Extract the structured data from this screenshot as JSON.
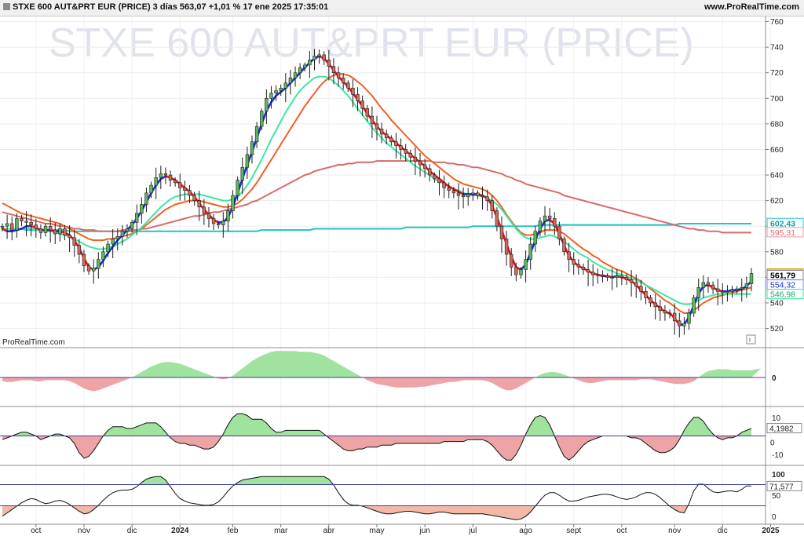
{
  "header": {
    "title": "STXE 600 AUT&PRT EUR (PRICE) 3 días 563,07 +1,01 % 17 ene 2025 17:35:01",
    "site": "www.ProRealTime.com"
  },
  "watermark": "STXE 600 AUT&PRT EUR (PRICE)",
  "brand_label": "ProRealTime.com",
  "info_icon": "info-icon",
  "colors": {
    "up": "#5db85d",
    "down": "#d06a5e",
    "ma_fast": "#e0141e",
    "ma_fast_up": "#1a2fd8",
    "ma_mid": "#f06025",
    "ma_green": "#3ae8a0",
    "ma_slow": "#d86b6b",
    "ma_flat": "#20c4c8",
    "osc_pos": "#9fe39f",
    "osc_neg": "#eea4a4"
  },
  "price_tags": [
    {
      "label": "602,43",
      "value": 602.43,
      "bg": "#ffffff",
      "fg": "#129ca0",
      "border": "#20c4c8",
      "bold": true
    },
    {
      "label": "595,31",
      "value": 595.31,
      "bg": "#ffffff",
      "fg": "#d86b6b",
      "border": "#e8a0a0",
      "bold": false
    },
    {
      "label": "563,07",
      "value": 563.07,
      "bg": "#f2c232",
      "fg": "#000000",
      "border": "#d8a818",
      "bold": true
    },
    {
      "label": "561,79",
      "value": 561.79,
      "bg": "#ffffff",
      "fg": "#000000",
      "border": "#888888",
      "bold": true
    },
    {
      "label": "554,32",
      "value": 554.32,
      "bg": "#ffffff",
      "fg": "#1a2fd8",
      "border": "#7f8ff0",
      "bold": false
    },
    {
      "label": "546,98",
      "value": 546.98,
      "bg": "#ffffff",
      "fg": "#20a070",
      "border": "#3ae8a0",
      "bold": false
    }
  ],
  "panel2_tag": "0",
  "panel3_tag": "4,1982",
  "panel4_tag": "71,577",
  "chart_data": {
    "type": "candlestick",
    "title": "STXE 600 AUT&PRT EUR (PRICE)",
    "timeframe": "3 días",
    "last": 563.07,
    "change_pct": "+1,01 %",
    "ylim": [
      505,
      764
    ],
    "y_ticks": [
      520,
      540,
      560,
      580,
      600,
      620,
      640,
      660,
      680,
      700,
      720,
      740,
      760
    ],
    "x_ticks": [
      {
        "label": "oct",
        "i": 7,
        "bold": false
      },
      {
        "label": "nov",
        "i": 17,
        "bold": false
      },
      {
        "label": "dic",
        "i": 27,
        "bold": false
      },
      {
        "label": "2024",
        "i": 37,
        "bold": true
      },
      {
        "label": "feb",
        "i": 48,
        "bold": false
      },
      {
        "label": "mar",
        "i": 58,
        "bold": false
      },
      {
        "label": "abr",
        "i": 68,
        "bold": false
      },
      {
        "label": "may",
        "i": 78,
        "bold": false
      },
      {
        "label": "jun",
        "i": 88,
        "bold": false
      },
      {
        "label": "jul",
        "i": 98,
        "bold": false
      },
      {
        "label": "ago",
        "i": 109,
        "bold": false
      },
      {
        "label": "sept",
        "i": 119,
        "bold": false
      },
      {
        "label": "oct",
        "i": 129,
        "bold": false
      },
      {
        "label": "nov",
        "i": 140,
        "bold": false
      },
      {
        "label": "dic",
        "i": 150,
        "bold": false
      },
      {
        "label": "2025",
        "i": 160,
        "bold": true
      }
    ],
    "close": [
      600,
      602,
      597,
      606,
      604,
      603,
      601,
      598,
      595,
      600,
      597,
      594,
      598,
      593,
      591,
      585,
      578,
      569,
      565,
      567,
      574,
      580,
      586,
      590,
      592,
      596,
      598,
      603,
      610,
      617,
      626,
      632,
      638,
      641,
      640,
      636,
      634,
      630,
      628,
      624,
      620,
      615,
      610,
      606,
      602,
      601,
      604,
      612,
      624,
      636,
      646,
      656,
      666,
      678,
      690,
      700,
      704,
      706,
      708,
      712,
      716,
      720,
      724,
      726,
      730,
      733,
      734,
      730,
      725,
      720,
      716,
      712,
      708,
      703,
      698,
      692,
      686,
      680,
      676,
      672,
      669,
      666,
      663,
      660,
      657,
      654,
      651,
      648,
      645,
      640,
      637,
      634,
      630,
      628,
      626,
      624,
      623,
      625,
      626,
      624,
      623,
      620,
      612,
      600,
      590,
      578,
      568,
      562,
      566,
      574,
      586,
      596,
      604,
      608,
      606,
      600,
      590,
      580,
      574,
      570,
      568,
      566,
      564,
      562,
      562,
      561,
      560,
      560,
      561,
      560,
      558,
      556,
      553,
      549,
      544,
      540,
      537,
      534,
      532,
      532,
      526,
      522,
      524,
      532,
      544,
      552,
      556,
      554,
      551,
      549,
      548,
      549,
      550,
      551,
      552,
      555,
      563
    ],
    "ma_fast": [
      598,
      596,
      596,
      597,
      598,
      600,
      600,
      599,
      597,
      597,
      597,
      596,
      596,
      595,
      593,
      589,
      583,
      575,
      568,
      566,
      568,
      573,
      579,
      584,
      589,
      593,
      597,
      601,
      606,
      612,
      619,
      626,
      632,
      637,
      639,
      638,
      636,
      633,
      630,
      627,
      623,
      618,
      613,
      609,
      605,
      603,
      603,
      607,
      615,
      626,
      637,
      648,
      658,
      669,
      680,
      690,
      697,
      702,
      705,
      708,
      712,
      716,
      720,
      724,
      728,
      731,
      733,
      731,
      727,
      722,
      717,
      713,
      709,
      704,
      699,
      694,
      688,
      683,
      678,
      674,
      671,
      668,
      665,
      662,
      659,
      656,
      653,
      650,
      647,
      643,
      640,
      637,
      634,
      631,
      629,
      627,
      625,
      625,
      625,
      625,
      624,
      622,
      616,
      607,
      597,
      586,
      576,
      568,
      566,
      570,
      579,
      589,
      598,
      604,
      605,
      602,
      594,
      585,
      577,
      572,
      569,
      567,
      565,
      563,
      562,
      561,
      561,
      560,
      561,
      560,
      559,
      557,
      554,
      550,
      546,
      542,
      539,
      536,
      533,
      532,
      528,
      523,
      523,
      529,
      538,
      547,
      553,
      554,
      552,
      550,
      549,
      549,
      550,
      550,
      551,
      553,
      557
    ],
    "ma_mid": [
      618,
      616,
      614,
      612,
      610,
      609,
      608,
      607,
      606,
      605,
      604,
      603,
      602,
      600,
      598,
      596,
      594,
      592,
      590,
      589,
      589,
      589,
      590,
      590,
      591,
      592,
      593,
      594,
      596,
      598,
      601,
      604,
      607,
      610,
      613,
      615,
      617,
      618,
      619,
      620,
      620,
      620,
      619,
      618,
      617,
      616,
      615,
      615,
      616,
      618,
      621,
      625,
      629,
      634,
      640,
      646,
      652,
      658,
      664,
      670,
      676,
      682,
      688,
      694,
      699,
      704,
      709,
      713,
      716,
      718,
      719,
      719,
      718,
      716,
      713,
      710,
      706,
      702,
      697,
      692,
      688,
      683,
      679,
      675,
      671,
      667,
      663,
      659,
      655,
      652,
      649,
      646,
      643,
      640,
      637,
      635,
      633,
      632,
      631,
      630,
      629,
      627,
      624,
      620,
      615,
      609,
      604,
      599,
      595,
      593,
      593,
      594,
      595,
      597,
      597,
      597,
      596,
      594,
      591,
      588,
      585,
      582,
      580,
      577,
      575,
      572,
      570,
      568,
      566,
      565,
      563,
      561,
      559,
      557,
      554,
      551,
      548,
      545,
      542,
      540,
      537,
      534,
      532,
      532,
      534,
      537,
      540,
      542,
      544,
      545,
      546,
      547,
      548,
      549,
      550,
      551,
      552
    ],
    "ma_green": [
      598,
      598,
      598,
      598,
      598,
      598,
      598,
      597,
      597,
      596,
      596,
      595,
      594,
      593,
      592,
      590,
      588,
      586,
      584,
      583,
      582,
      582,
      583,
      584,
      586,
      588,
      590,
      593,
      596,
      599,
      603,
      607,
      611,
      615,
      618,
      621,
      623,
      624,
      625,
      625,
      625,
      625,
      624,
      623,
      622,
      621,
      620,
      620,
      621,
      623,
      627,
      632,
      638,
      645,
      652,
      660,
      668,
      675,
      682,
      689,
      695,
      701,
      706,
      710,
      713,
      716,
      717,
      717,
      716,
      713,
      710,
      706,
      702,
      697,
      692,
      687,
      682,
      677,
      673,
      669,
      665,
      662,
      659,
      656,
      653,
      650,
      647,
      645,
      642,
      640,
      637,
      635,
      633,
      631,
      629,
      628,
      626,
      625,
      624,
      624,
      623,
      622,
      620,
      617,
      613,
      608,
      603,
      598,
      594,
      591,
      590,
      590,
      591,
      592,
      593,
      592,
      590,
      588,
      585,
      582,
      579,
      577,
      575,
      572,
      570,
      568,
      566,
      565,
      563,
      562,
      561,
      559,
      558,
      556,
      554,
      552,
      550,
      548,
      546,
      544,
      542,
      540,
      539,
      539,
      540,
      542,
      544,
      545,
      546,
      547,
      547,
      547,
      547,
      547,
      547,
      547,
      547
    ],
    "ma_slow": [
      611,
      610,
      609,
      608,
      607,
      606,
      605,
      604,
      603,
      602,
      602,
      601,
      600,
      600,
      599,
      598,
      598,
      597,
      597,
      597,
      596,
      596,
      596,
      596,
      596,
      597,
      597,
      597,
      597,
      598,
      598,
      599,
      600,
      601,
      602,
      603,
      604,
      605,
      606,
      607,
      608,
      608,
      609,
      610,
      611,
      611,
      612,
      613,
      614,
      615,
      616,
      617,
      619,
      620,
      622,
      624,
      626,
      628,
      630,
      632,
      634,
      636,
      638,
      640,
      641,
      643,
      644,
      645,
      646,
      647,
      648,
      648,
      649,
      649,
      650,
      650,
      650,
      650,
      651,
      651,
      651,
      651,
      651,
      651,
      651,
      651,
      651,
      651,
      651,
      651,
      650,
      650,
      650,
      649,
      649,
      648,
      648,
      647,
      646,
      646,
      645,
      644,
      643,
      642,
      641,
      639,
      638,
      636,
      635,
      633,
      632,
      631,
      630,
      629,
      628,
      627,
      626,
      624,
      623,
      622,
      621,
      620,
      619,
      618,
      617,
      616,
      615,
      614,
      613,
      612,
      611,
      610,
      609,
      608,
      607,
      606,
      605,
      604,
      603,
      602,
      601,
      600,
      599,
      598,
      598,
      597,
      597,
      596,
      596,
      596,
      595,
      595,
      595,
      595,
      595,
      595,
      595
    ],
    "ma_flat": [
      598,
      598,
      598,
      598,
      598,
      597,
      597,
      597,
      597,
      597,
      597,
      597,
      597,
      597,
      596,
      596,
      596,
      596,
      596,
      596,
      596,
      596,
      596,
      596,
      596,
      596,
      596,
      596,
      596,
      596,
      596,
      596,
      596,
      596,
      596,
      596,
      596,
      596,
      596,
      596,
      596,
      596,
      596,
      596,
      596,
      596,
      596,
      596,
      596,
      596,
      596,
      596,
      596,
      596,
      597,
      597,
      597,
      597,
      597,
      597,
      597,
      597,
      597,
      597,
      597,
      598,
      598,
      598,
      598,
      598,
      598,
      598,
      598,
      598,
      598,
      598,
      598,
      598,
      598,
      598,
      598,
      598,
      598,
      598,
      599,
      599,
      599,
      599,
      599,
      599,
      599,
      599,
      599,
      599,
      599,
      599,
      599,
      599,
      600,
      600,
      600,
      600,
      600,
      600,
      600,
      600,
      600,
      600,
      600,
      600,
      600,
      600,
      601,
      601,
      601,
      601,
      601,
      601,
      601,
      601,
      601,
      601,
      601,
      601,
      601,
      601,
      601,
      601,
      601,
      601,
      601,
      601,
      601,
      601,
      601,
      601,
      601,
      601,
      601,
      601,
      601,
      602,
      602,
      602,
      602,
      602,
      602,
      602,
      602,
      602,
      602,
      602,
      602,
      602,
      602,
      602,
      602
    ],
    "osc1_ylim": [
      -30,
      30
    ],
    "osc1": [
      -4,
      -5,
      -5,
      -4,
      -3,
      -3,
      -3,
      -4,
      -4,
      -3,
      -3,
      -3,
      -3,
      -3,
      -4,
      -6,
      -9,
      -12,
      -14,
      -15,
      -14,
      -12,
      -10,
      -8,
      -6,
      -4,
      -2,
      0,
      3,
      6,
      9,
      12,
      14,
      16,
      17,
      17,
      16,
      15,
      13,
      11,
      9,
      7,
      5,
      3,
      1,
      -1,
      -2,
      -1,
      2,
      6,
      10,
      14,
      18,
      21,
      24,
      26,
      28,
      29,
      29,
      29,
      29,
      29,
      28,
      28,
      28,
      27,
      26,
      24,
      21,
      18,
      15,
      12,
      9,
      6,
      3,
      0,
      -3,
      -5,
      -7,
      -8,
      -9,
      -10,
      -11,
      -11,
      -11,
      -11,
      -11,
      -10,
      -10,
      -9,
      -8,
      -7,
      -6,
      -5,
      -5,
      -4,
      -3,
      -3,
      -3,
      -3,
      -3,
      -4,
      -6,
      -9,
      -12,
      -14,
      -14,
      -12,
      -9,
      -6,
      -3,
      0,
      3,
      5,
      6,
      6,
      5,
      3,
      1,
      -1,
      -3,
      -5,
      -6,
      -6,
      -5,
      -4,
      -3,
      -3,
      -3,
      -3,
      -3,
      -3,
      -3,
      -2,
      -2,
      -2,
      -3,
      -4,
      -5,
      -6,
      -7,
      -7,
      -7,
      -6,
      -4,
      0,
      4,
      7,
      8,
      9,
      9,
      9,
      8,
      8,
      8,
      8,
      8,
      9,
      10
    ],
    "osc2_ylim": [
      -15,
      15
    ],
    "osc2": [
      -2,
      -1,
      0,
      1,
      2,
      2,
      1,
      0,
      -2,
      -1,
      0,
      1,
      1,
      0,
      -1,
      -4,
      -9,
      -12,
      -11,
      -8,
      -4,
      0,
      3,
      5,
      5,
      5,
      4,
      4,
      5,
      6,
      7,
      7,
      7,
      5,
      2,
      -1,
      -3,
      -4,
      -4,
      -5,
      -5,
      -6,
      -7,
      -7,
      -6,
      -3,
      1,
      6,
      10,
      12,
      12,
      11,
      9,
      9,
      9,
      7,
      4,
      2,
      2,
      3,
      3,
      3,
      3,
      3,
      3,
      3,
      3,
      1,
      -1,
      -3,
      -5,
      -7,
      -8,
      -8,
      -7,
      -7,
      -6,
      -6,
      -6,
      -5,
      -5,
      -5,
      -4,
      -4,
      -4,
      -4,
      -4,
      -4,
      -4,
      -4,
      -4,
      -4,
      -3,
      -3,
      -3,
      -3,
      -3,
      -2,
      -2,
      -2,
      -2,
      -3,
      -5,
      -8,
      -11,
      -13,
      -13,
      -10,
      -5,
      1,
      6,
      10,
      11,
      10,
      6,
      0,
      -6,
      -11,
      -13,
      -11,
      -8,
      -5,
      -3,
      -2,
      -1,
      0,
      0,
      0,
      0,
      0,
      0,
      -1,
      -1,
      -2,
      -4,
      -6,
      -8,
      -9,
      -9,
      -8,
      -6,
      -2,
      3,
      7,
      10,
      10,
      8,
      4,
      1,
      -1,
      -2,
      -1,
      -1,
      0,
      2,
      3,
      4
    ],
    "osc3_ylim": [
      -15,
      115
    ],
    "osc3_levels": [
      25,
      75
    ],
    "osc3": [
      0,
      8,
      16,
      24,
      32,
      38,
      42,
      40,
      34,
      30,
      32,
      36,
      38,
      34,
      28,
      20,
      12,
      6,
      8,
      16,
      26,
      38,
      48,
      56,
      60,
      62,
      62,
      64,
      70,
      80,
      88,
      92,
      94,
      94,
      86,
      70,
      54,
      42,
      36,
      32,
      30,
      28,
      26,
      26,
      28,
      34,
      46,
      60,
      72,
      80,
      86,
      88,
      90,
      92,
      94,
      94,
      94,
      94,
      94,
      94,
      94,
      94,
      94,
      94,
      94,
      94,
      94,
      94,
      88,
      74,
      56,
      40,
      30,
      26,
      26,
      24,
      20,
      16,
      12,
      8,
      6,
      6,
      8,
      10,
      12,
      12,
      10,
      8,
      6,
      6,
      8,
      10,
      10,
      8,
      6,
      6,
      6,
      6,
      6,
      6,
      6,
      4,
      2,
      0,
      -2,
      -4,
      -6,
      -8,
      -6,
      0,
      10,
      24,
      38,
      50,
      56,
      56,
      50,
      42,
      36,
      36,
      38,
      42,
      46,
      48,
      50,
      52,
      52,
      50,
      46,
      42,
      40,
      42,
      46,
      52,
      56,
      56,
      52,
      44,
      34,
      24,
      16,
      10,
      8,
      30,
      60,
      76,
      76,
      66,
      58,
      56,
      58,
      60,
      60,
      58,
      64,
      72,
      72
    ]
  }
}
